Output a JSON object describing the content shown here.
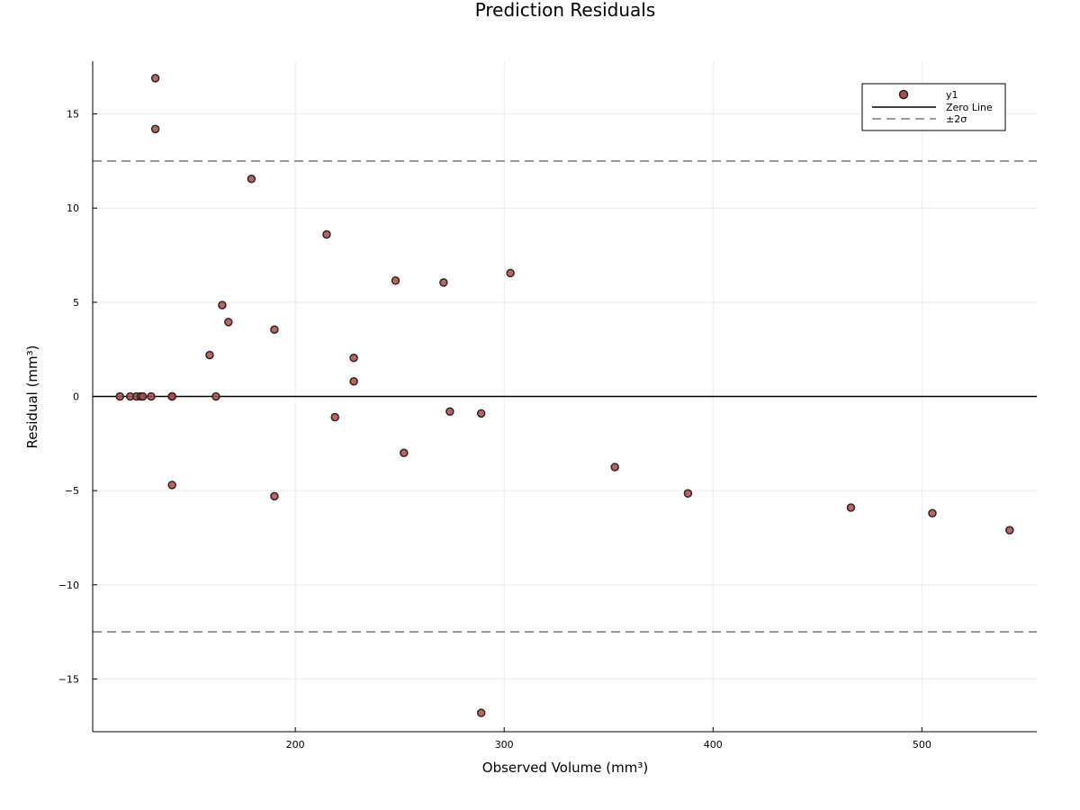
{
  "chart_data": {
    "type": "scatter",
    "title": "Prediction Residuals",
    "xlabel": "Observed Volume (mm³)",
    "ylabel": "Residual (mm³)",
    "xlim": [
      103,
      555
    ],
    "ylim": [
      -17.8,
      17.8
    ],
    "xticks": [
      200,
      300,
      400,
      500
    ],
    "yticks": [
      -15,
      -10,
      -5,
      0,
      5,
      10,
      15
    ],
    "xtick_labels": [
      "200",
      "300",
      "400",
      "500"
    ],
    "ytick_labels": [
      "−15",
      "−10",
      "−5",
      "0",
      "5",
      "10",
      "15"
    ],
    "grid": true,
    "legend_position": "top-right",
    "series": [
      {
        "name": "y1",
        "kind": "points",
        "color": "#a05050",
        "stroke": "#3a1f1f",
        "points": [
          [
            116,
            0
          ],
          [
            121,
            0
          ],
          [
            124,
            0
          ],
          [
            126,
            0
          ],
          [
            127,
            0
          ],
          [
            131,
            0
          ],
          [
            133,
            16.9
          ],
          [
            133,
            14.2
          ],
          [
            141,
            0
          ],
          [
            141,
            0
          ],
          [
            141,
            0
          ],
          [
            141,
            -4.7
          ],
          [
            159,
            2.2
          ],
          [
            162,
            0
          ],
          [
            165,
            4.85
          ],
          [
            168,
            3.95
          ],
          [
            179,
            11.55
          ],
          [
            190,
            3.55
          ],
          [
            190,
            -5.3
          ],
          [
            215,
            8.6
          ],
          [
            219,
            -1.1
          ],
          [
            228,
            2.05
          ],
          [
            228,
            0.8
          ],
          [
            248,
            6.15
          ],
          [
            252,
            -3.0
          ],
          [
            271,
            6.05
          ],
          [
            274,
            -0.8
          ],
          [
            289,
            -0.9
          ],
          [
            289,
            -16.8
          ],
          [
            303,
            6.55
          ],
          [
            353,
            -3.75
          ],
          [
            388,
            -5.15
          ],
          [
            466,
            -5.9
          ],
          [
            505,
            -6.2
          ],
          [
            542,
            -7.1
          ]
        ]
      },
      {
        "name": "Zero Line",
        "kind": "hline",
        "y": 0,
        "color": "#000000",
        "dash": "solid"
      },
      {
        "name": "±2σ",
        "kind": "hline",
        "y": [
          12.5,
          -12.5
        ],
        "color": "#808080",
        "dash": "dashed"
      }
    ]
  }
}
